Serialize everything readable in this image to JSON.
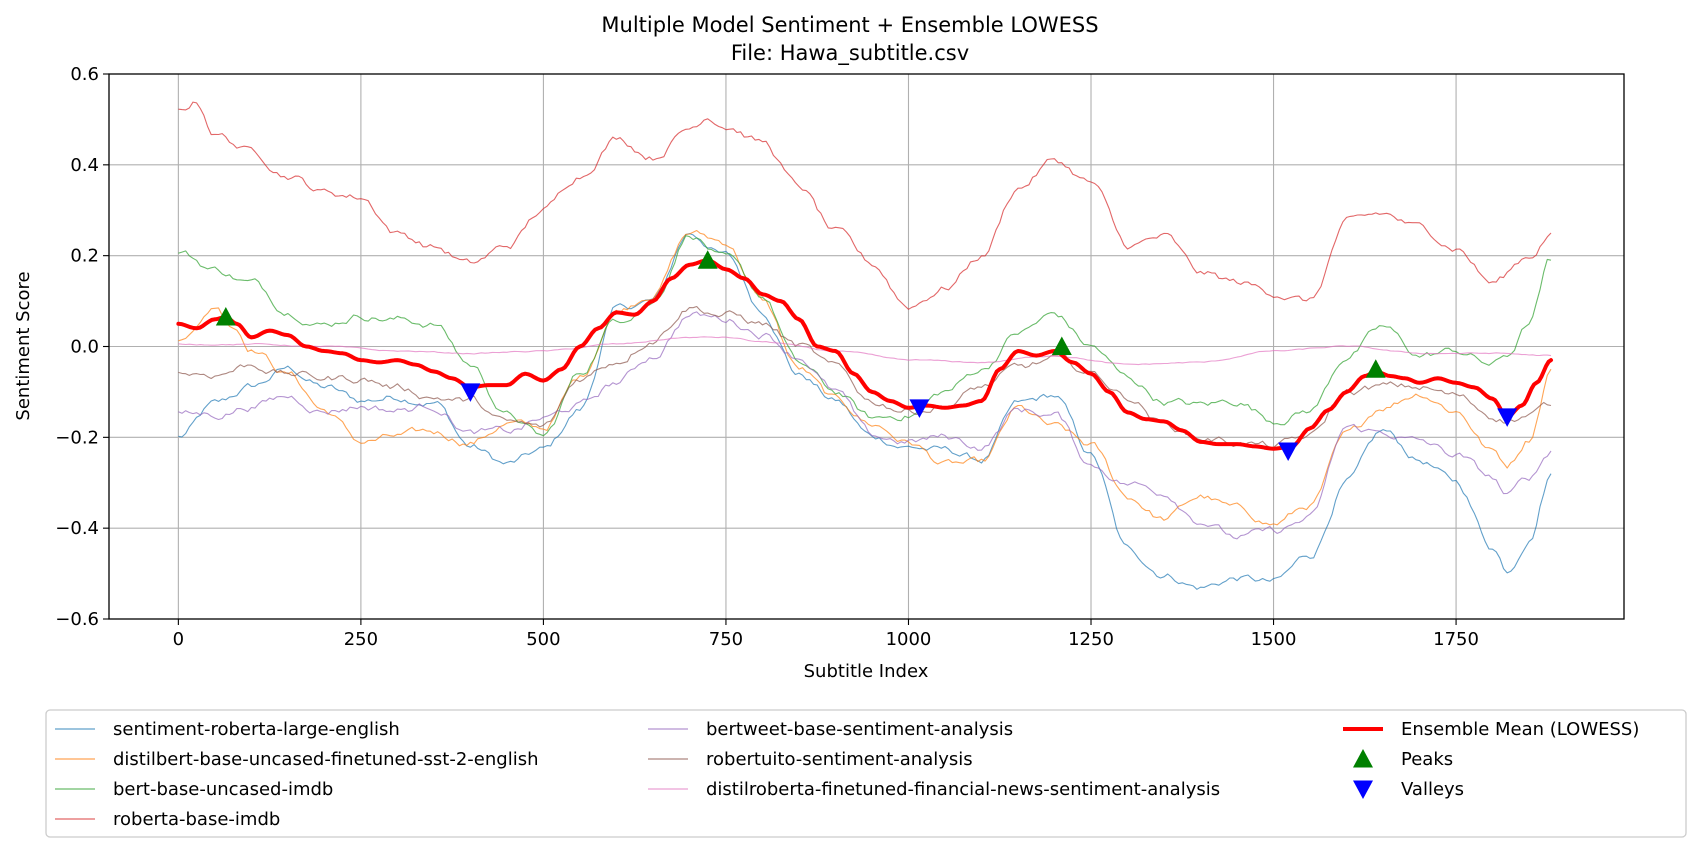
{
  "chart_data": {
    "type": "line",
    "title": "Multiple Model Sentiment + Ensemble LOWESS",
    "subtitle": "File: Hawa_subtitle.csv",
    "xlabel": "Subtitle Index",
    "ylabel": "Sentiment Score",
    "xlim": [
      -95,
      1980
    ],
    "ylim": [
      -0.6,
      0.6
    ],
    "x_ticks": [
      0,
      250,
      500,
      750,
      1000,
      1250,
      1500,
      1750
    ],
    "y_ticks": [
      -0.6,
      -0.4,
      -0.2,
      0.0,
      0.2,
      0.4,
      0.6
    ],
    "x_tick_labels": [
      "0",
      "250",
      "500",
      "750",
      "1000",
      "1250",
      "1500",
      "1750"
    ],
    "y_tick_labels": [
      "−0.6",
      "−0.4",
      "−0.2",
      "0.0",
      "0.2",
      "0.4",
      "0.6"
    ],
    "grid": true,
    "legend_position": "bottom",
    "series": [
      {
        "name": "sentiment-roberta-large-english",
        "color": "#1f77b4",
        "x": [
          0,
          50,
          100,
          150,
          200,
          250,
          300,
          350,
          400,
          450,
          500,
          550,
          600,
          650,
          700,
          750,
          800,
          850,
          900,
          950,
          1000,
          1050,
          1100,
          1150,
          1200,
          1250,
          1300,
          1350,
          1400,
          1450,
          1500,
          1550,
          1600,
          1650,
          1700,
          1750,
          1800,
          1820,
          1850,
          1880
        ],
        "values": [
          -0.2,
          -0.13,
          -0.09,
          -0.05,
          -0.09,
          -0.12,
          -0.11,
          -0.12,
          -0.22,
          -0.26,
          -0.23,
          -0.14,
          0.08,
          0.1,
          0.25,
          0.2,
          0.08,
          -0.06,
          -0.12,
          -0.2,
          -0.22,
          -0.23,
          -0.25,
          -0.13,
          -0.11,
          -0.24,
          -0.45,
          -0.5,
          -0.53,
          -0.51,
          -0.52,
          -0.46,
          -0.3,
          -0.19,
          -0.25,
          -0.3,
          -0.44,
          -0.49,
          -0.42,
          -0.28
        ]
      },
      {
        "name": "distilbert-base-uncased-finetuned-sst-2-english",
        "color": "#ff7f0e",
        "x": [
          0,
          25,
          50,
          75,
          100,
          150,
          200,
          250,
          300,
          350,
          400,
          450,
          500,
          550,
          600,
          650,
          700,
          750,
          800,
          850,
          900,
          950,
          1000,
          1050,
          1100,
          1150,
          1200,
          1250,
          1300,
          1350,
          1400,
          1450,
          1500,
          1550,
          1600,
          1650,
          1700,
          1750,
          1800,
          1820,
          1850,
          1880
        ],
        "values": [
          0.01,
          0.05,
          0.09,
          0.05,
          0.0,
          -0.06,
          -0.14,
          -0.21,
          -0.2,
          -0.19,
          -0.21,
          -0.17,
          -0.18,
          -0.07,
          0.08,
          0.12,
          0.25,
          0.23,
          0.1,
          -0.05,
          -0.12,
          -0.17,
          -0.21,
          -0.26,
          -0.26,
          -0.14,
          -0.18,
          -0.22,
          -0.33,
          -0.38,
          -0.33,
          -0.36,
          -0.39,
          -0.35,
          -0.2,
          -0.13,
          -0.1,
          -0.14,
          -0.23,
          -0.26,
          -0.2,
          -0.05
        ]
      },
      {
        "name": "bert-base-uncased-imdb",
        "color": "#2ca02c",
        "x": [
          0,
          50,
          100,
          150,
          200,
          250,
          300,
          350,
          400,
          450,
          500,
          550,
          600,
          650,
          700,
          750,
          800,
          850,
          900,
          950,
          1000,
          1050,
          1100,
          1150,
          1200,
          1250,
          1300,
          1350,
          1400,
          1450,
          1500,
          1550,
          1600,
          1650,
          1700,
          1750,
          1800,
          1820,
          1850,
          1880
        ],
        "values": [
          0.21,
          0.17,
          0.14,
          0.08,
          0.05,
          0.07,
          0.06,
          0.05,
          -0.04,
          -0.15,
          -0.2,
          -0.06,
          0.06,
          0.1,
          0.25,
          0.19,
          0.11,
          -0.04,
          -0.1,
          -0.16,
          -0.15,
          -0.1,
          -0.05,
          0.03,
          0.07,
          0.0,
          -0.07,
          -0.12,
          -0.13,
          -0.12,
          -0.16,
          -0.14,
          -0.02,
          0.04,
          -0.02,
          -0.01,
          -0.04,
          -0.02,
          0.05,
          0.19
        ]
      },
      {
        "name": "roberta-base-imdb",
        "color": "#d62728",
        "x": [
          0,
          25,
          50,
          100,
          150,
          200,
          250,
          300,
          350,
          400,
          450,
          500,
          550,
          600,
          650,
          700,
          725,
          750,
          800,
          850,
          900,
          950,
          1000,
          1050,
          1100,
          1150,
          1200,
          1250,
          1300,
          1350,
          1400,
          1450,
          1500,
          1550,
          1600,
          1650,
          1700,
          1750,
          1800,
          1850,
          1880
        ],
        "values": [
          0.52,
          0.54,
          0.47,
          0.43,
          0.38,
          0.34,
          0.33,
          0.25,
          0.22,
          0.18,
          0.22,
          0.3,
          0.38,
          0.46,
          0.42,
          0.48,
          0.51,
          0.49,
          0.45,
          0.35,
          0.25,
          0.18,
          0.09,
          0.13,
          0.2,
          0.35,
          0.41,
          0.36,
          0.22,
          0.24,
          0.16,
          0.14,
          0.12,
          0.1,
          0.27,
          0.29,
          0.26,
          0.22,
          0.14,
          0.2,
          0.25
        ]
      },
      {
        "name": "bertweet-base-sentiment-analysis",
        "color": "#9467bd",
        "x": [
          0,
          50,
          100,
          150,
          200,
          250,
          300,
          350,
          400,
          450,
          500,
          550,
          600,
          650,
          700,
          750,
          800,
          850,
          900,
          950,
          1000,
          1050,
          1100,
          1150,
          1200,
          1250,
          1300,
          1350,
          1400,
          1450,
          1500,
          1550,
          1600,
          1650,
          1700,
          1750,
          1800,
          1820,
          1850,
          1880
        ],
        "values": [
          -0.15,
          -0.15,
          -0.13,
          -0.11,
          -0.14,
          -0.13,
          -0.14,
          -0.13,
          -0.19,
          -0.19,
          -0.16,
          -0.13,
          -0.08,
          -0.02,
          0.07,
          0.06,
          0.03,
          -0.02,
          -0.1,
          -0.2,
          -0.21,
          -0.2,
          -0.22,
          -0.14,
          -0.15,
          -0.26,
          -0.3,
          -0.32,
          -0.38,
          -0.42,
          -0.41,
          -0.38,
          -0.18,
          -0.19,
          -0.21,
          -0.24,
          -0.29,
          -0.33,
          -0.29,
          -0.23
        ]
      },
      {
        "name": "robertuito-sentiment-analysis",
        "color": "#8c564b",
        "x": [
          0,
          50,
          100,
          150,
          200,
          250,
          300,
          350,
          400,
          450,
          500,
          550,
          600,
          650,
          700,
          750,
          800,
          850,
          900,
          950,
          1000,
          1050,
          1100,
          1150,
          1200,
          1250,
          1300,
          1350,
          1400,
          1450,
          1500,
          1550,
          1600,
          1650,
          1700,
          1750,
          1800,
          1820,
          1850,
          1880
        ],
        "values": [
          -0.06,
          -0.06,
          -0.04,
          -0.06,
          -0.07,
          -0.07,
          -0.09,
          -0.11,
          -0.12,
          -0.17,
          -0.18,
          -0.07,
          -0.03,
          0.02,
          0.09,
          0.07,
          0.05,
          0.0,
          -0.05,
          -0.12,
          -0.14,
          -0.13,
          -0.09,
          -0.05,
          -0.03,
          -0.06,
          -0.11,
          -0.17,
          -0.2,
          -0.21,
          -0.22,
          -0.2,
          -0.1,
          -0.09,
          -0.09,
          -0.11,
          -0.15,
          -0.16,
          -0.15,
          -0.13
        ]
      },
      {
        "name": "distilroberta-finetuned-financial-news-sentiment-analysis",
        "color": "#e377c2",
        "x": [
          0,
          100,
          200,
          300,
          400,
          500,
          600,
          700,
          750,
          800,
          900,
          1000,
          1100,
          1200,
          1300,
          1400,
          1500,
          1600,
          1700,
          1800,
          1880
        ],
        "values": [
          0.005,
          0.005,
          0.0,
          -0.01,
          -0.015,
          -0.01,
          0.005,
          0.02,
          0.02,
          0.01,
          -0.01,
          -0.03,
          -0.035,
          -0.02,
          -0.04,
          -0.035,
          -0.01,
          0.0,
          -0.015,
          -0.015,
          -0.02
        ]
      }
    ],
    "ensemble": {
      "name": "Ensemble Mean (LOWESS)",
      "color": "#ff0000",
      "x": [
        0,
        25,
        50,
        65,
        80,
        100,
        125,
        150,
        175,
        200,
        225,
        250,
        275,
        300,
        325,
        350,
        375,
        400,
        425,
        450,
        475,
        500,
        525,
        550,
        575,
        600,
        625,
        650,
        675,
        700,
        725,
        750,
        775,
        800,
        825,
        850,
        875,
        900,
        925,
        950,
        975,
        1000,
        1025,
        1050,
        1075,
        1100,
        1125,
        1150,
        1175,
        1200,
        1225,
        1250,
        1275,
        1300,
        1325,
        1350,
        1375,
        1400,
        1425,
        1450,
        1475,
        1500,
        1525,
        1550,
        1575,
        1600,
        1625,
        1640,
        1660,
        1680,
        1700,
        1725,
        1750,
        1775,
        1800,
        1820,
        1840,
        1860,
        1880
      ],
      "values": [
        0.05,
        0.04,
        0.06,
        0.065,
        0.05,
        0.02,
        0.035,
        0.025,
        0.0,
        -0.01,
        -0.015,
        -0.03,
        -0.035,
        -0.03,
        -0.04,
        -0.055,
        -0.07,
        -0.09,
        -0.085,
        -0.085,
        -0.06,
        -0.075,
        -0.05,
        0.0,
        0.04,
        0.075,
        0.07,
        0.1,
        0.15,
        0.18,
        0.19,
        0.17,
        0.15,
        0.115,
        0.1,
        0.06,
        0.0,
        -0.01,
        -0.06,
        -0.1,
        -0.12,
        -0.135,
        -0.13,
        -0.135,
        -0.13,
        -0.12,
        -0.05,
        -0.01,
        -0.02,
        -0.01,
        -0.035,
        -0.06,
        -0.1,
        -0.145,
        -0.16,
        -0.165,
        -0.185,
        -0.21,
        -0.215,
        -0.215,
        -0.22,
        -0.225,
        -0.22,
        -0.18,
        -0.14,
        -0.1,
        -0.065,
        -0.055,
        -0.065,
        -0.07,
        -0.08,
        -0.07,
        -0.08,
        -0.09,
        -0.115,
        -0.155,
        -0.13,
        -0.08,
        -0.03
      ]
    },
    "peaks": {
      "name": "Peaks",
      "color": "#008000",
      "x": [
        65,
        725,
        1210,
        1640
      ],
      "values": [
        0.065,
        0.19,
        0.0,
        -0.05
      ]
    },
    "valleys": {
      "name": "Valleys",
      "color": "#0000ff",
      "x": [
        400,
        1015,
        1520,
        1820
      ],
      "values": [
        -0.1,
        -0.135,
        -0.23,
        -0.155
      ]
    }
  }
}
